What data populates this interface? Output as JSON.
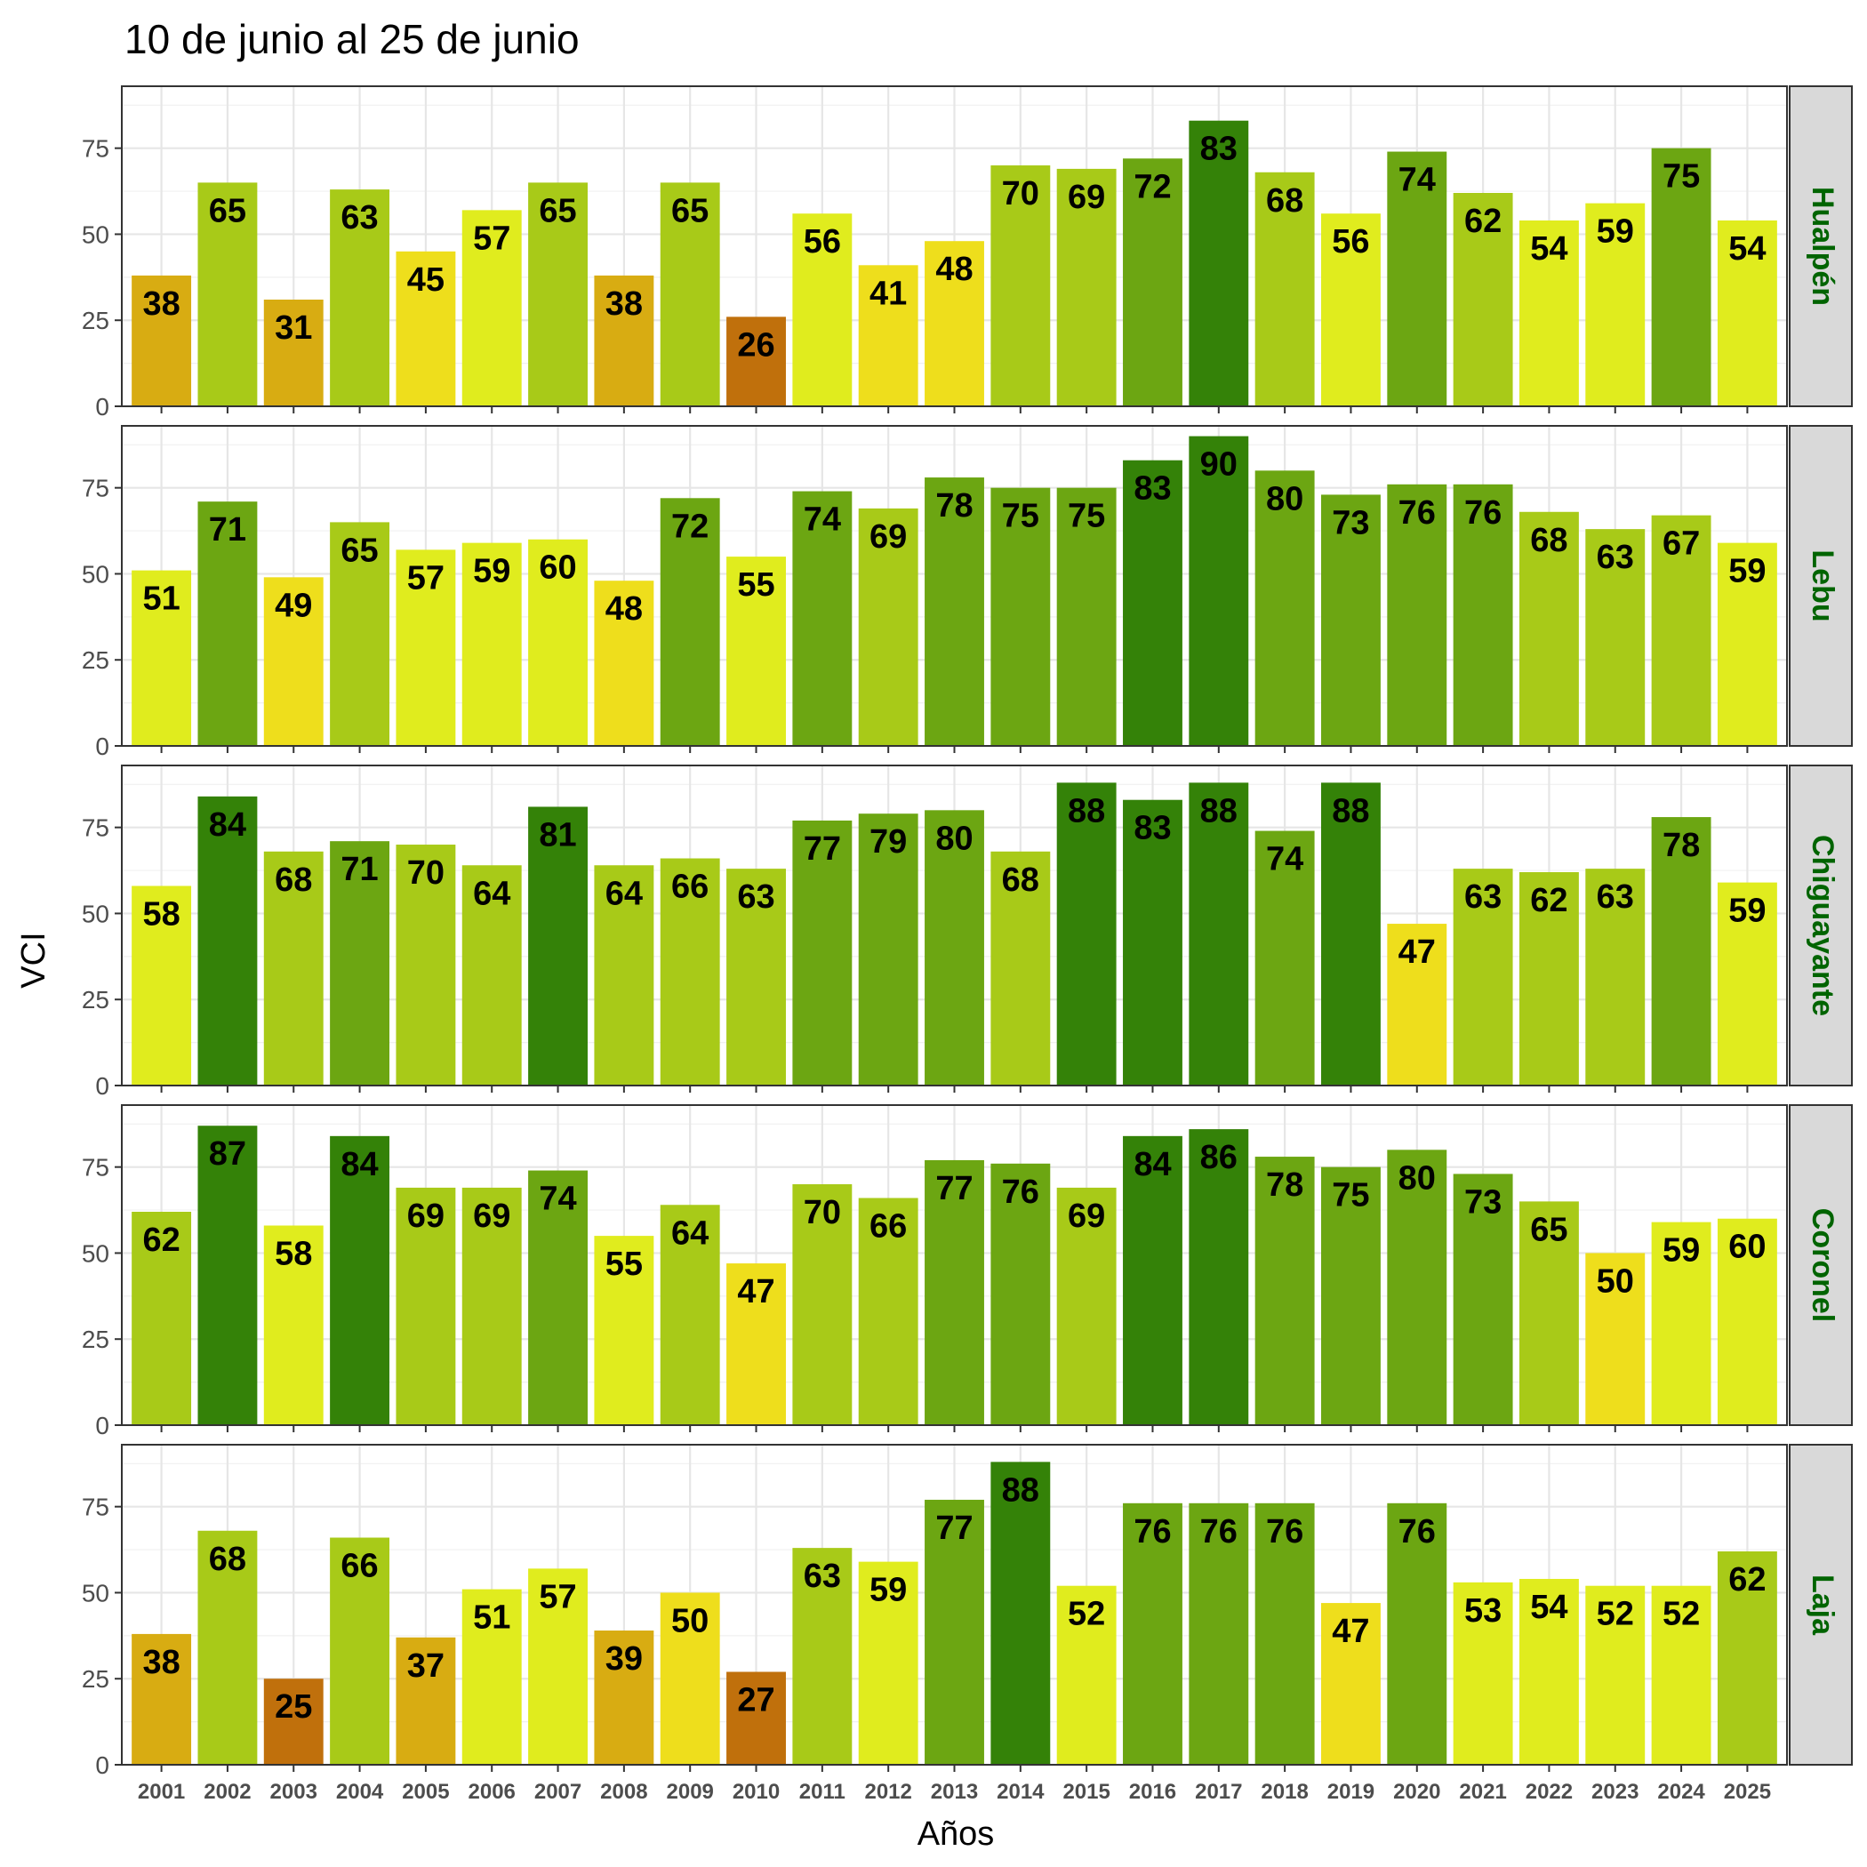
{
  "chart_data": {
    "type": "bar",
    "title": "10 de junio al 25 de junio",
    "xlabel": "Años",
    "ylabel": "VCI",
    "ylim": [
      0,
      93
    ],
    "yticks": [
      0,
      25,
      50,
      75
    ],
    "grid": true,
    "facet_layout": "rows",
    "categories": [
      "2001",
      "2002",
      "2003",
      "2004",
      "2005",
      "2006",
      "2007",
      "2008",
      "2009",
      "2010",
      "2011",
      "2012",
      "2013",
      "2014",
      "2015",
      "2016",
      "2017",
      "2018",
      "2019",
      "2020",
      "2021",
      "2022",
      "2023",
      "2024",
      "2025"
    ],
    "color_scale": [
      {
        "max": 29,
        "color": "#C0700C"
      },
      {
        "max": 39,
        "color": "#D8AC12"
      },
      {
        "max": 50,
        "color": "#EEDE1C"
      },
      {
        "max": 60,
        "color": "#E0EC1E"
      },
      {
        "max": 70,
        "color": "#A8CA18"
      },
      {
        "max": 80,
        "color": "#6CA612"
      },
      {
        "max": 100,
        "color": "#348208"
      }
    ],
    "series": [
      {
        "name": "Hualpén",
        "values": [
          38,
          65,
          31,
          63,
          45,
          57,
          65,
          38,
          65,
          26,
          56,
          41,
          48,
          70,
          69,
          72,
          83,
          68,
          56,
          74,
          62,
          54,
          59,
          75,
          54
        ]
      },
      {
        "name": "Lebu",
        "values": [
          51,
          71,
          49,
          65,
          57,
          59,
          60,
          48,
          72,
          55,
          74,
          69,
          78,
          75,
          75,
          83,
          90,
          80,
          73,
          76,
          76,
          68,
          63,
          67,
          59
        ]
      },
      {
        "name": "Chiguayante",
        "values": [
          58,
          84,
          68,
          71,
          70,
          64,
          81,
          64,
          66,
          63,
          77,
          79,
          80,
          68,
          88,
          83,
          88,
          74,
          88,
          47,
          63,
          62,
          63,
          78,
          59
        ]
      },
      {
        "name": "Coronel",
        "values": [
          62,
          87,
          58,
          84,
          69,
          69,
          74,
          55,
          64,
          47,
          70,
          66,
          77,
          76,
          69,
          84,
          86,
          78,
          75,
          80,
          73,
          65,
          50,
          59,
          60
        ]
      },
      {
        "name": "Laja",
        "values": [
          38,
          68,
          25,
          66,
          37,
          51,
          57,
          39,
          50,
          27,
          63,
          59,
          77,
          88,
          52,
          76,
          76,
          76,
          47,
          76,
          53,
          54,
          52,
          52,
          62
        ]
      }
    ]
  }
}
